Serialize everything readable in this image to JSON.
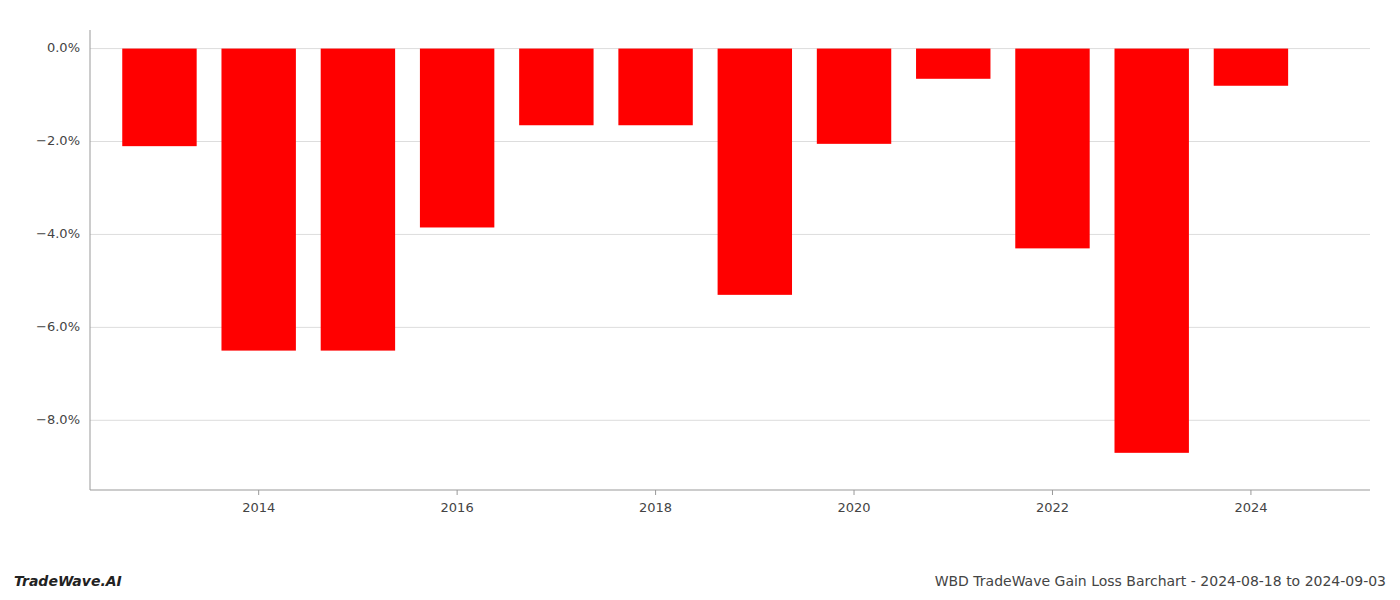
{
  "chart_data": {
    "type": "bar",
    "x": [
      2013,
      2014,
      2015,
      2016,
      2017,
      2018,
      2019,
      2020,
      2021,
      2022,
      2023,
      2024
    ],
    "values": [
      -2.1,
      -6.5,
      -6.5,
      -3.85,
      -1.65,
      -1.65,
      -5.3,
      -2.05,
      -0.65,
      -4.3,
      -8.7,
      -0.8
    ],
    "color": "#ff0000",
    "xlim": [
      2012.3,
      2025.2
    ],
    "xticks": [
      2014,
      2016,
      2018,
      2020,
      2022,
      2024
    ],
    "ylim": [
      -9.5,
      0.4
    ],
    "yticks": [
      {
        "value": 0.0,
        "label": "0.0%"
      },
      {
        "value": -2.0,
        "label": "−2.0%"
      },
      {
        "value": -4.0,
        "label": "−4.0%"
      },
      {
        "value": -6.0,
        "label": "−6.0%"
      },
      {
        "value": -8.0,
        "label": "−8.0%"
      }
    ],
    "grid": true,
    "annotations": [
      "TradeWave.AI",
      "WBD TradeWave Gain Loss Barchart - 2024-08-18 to 2024-09-03"
    ]
  }
}
